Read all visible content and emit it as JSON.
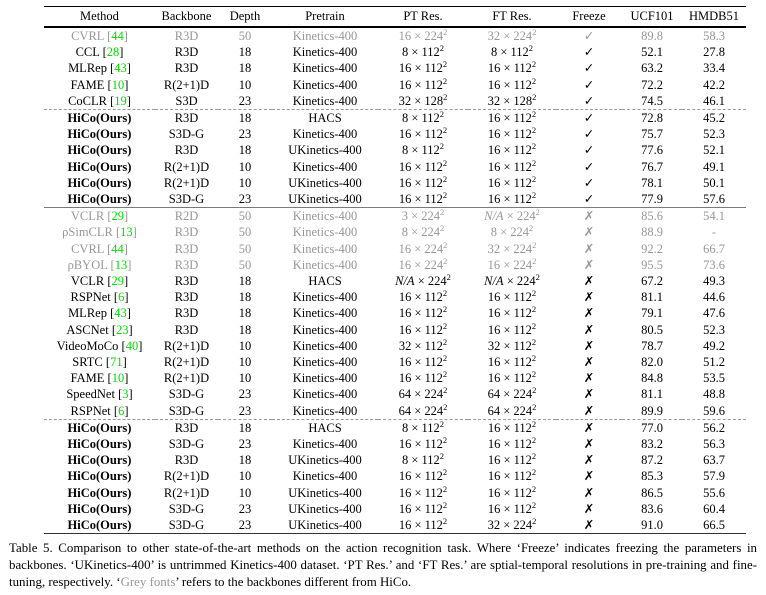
{
  "table": {
    "columns": [
      "Method",
      "Backbone",
      "Depth",
      "Pretrain",
      "PT Res.",
      "FT Res.",
      "Freeze",
      "UCF101",
      "HMDB51"
    ],
    "icons": {
      "check": "✓",
      "cross": "✗"
    },
    "colors": {
      "citation_green": "#00dc00",
      "grey_text": "#979797"
    },
    "res_exponent": "2",
    "rows": [
      {
        "method": "CVRL",
        "cite": "44",
        "backbone": "R3D",
        "depth": "50",
        "pretrain": "Kinetics-400",
        "pt": "16 × 224",
        "ft": "32 × 224",
        "freeze": "check",
        "ucf101": "89.8",
        "hmdb51": "58.3",
        "grey": true
      },
      {
        "method": "CCL",
        "cite": "28",
        "backbone": "R3D",
        "depth": "18",
        "pretrain": "Kinetics-400",
        "pt": "8 × 112",
        "ft": "8 × 112",
        "freeze": "check",
        "ucf101": "52.1",
        "hmdb51": "27.8"
      },
      {
        "method": "MLRep",
        "cite": "43",
        "backbone": "R3D",
        "depth": "18",
        "pretrain": "Kinetics-400",
        "pt": "16 × 112",
        "ft": "16 × 112",
        "freeze": "check",
        "ucf101": "63.2",
        "hmdb51": "33.4"
      },
      {
        "method": "FAME",
        "cite": "10",
        "backbone": "R(2+1)D",
        "depth": "10",
        "pretrain": "Kinetics-400",
        "pt": "16 × 112",
        "ft": "16 × 112",
        "freeze": "check",
        "ucf101": "72.2",
        "hmdb51": "42.2"
      },
      {
        "method": "CoCLR",
        "cite": "19",
        "backbone": "S3D",
        "depth": "23",
        "pretrain": "Kinetics-400",
        "pt": "32 × 128",
        "ft": "32 × 128",
        "freeze": "check",
        "ucf101": "74.5",
        "hmdb51": "46.1"
      },
      {
        "method": "HiCo(Ours)",
        "ours": true,
        "backbone": "R3D",
        "depth": "18",
        "pretrain": "HACS",
        "pt": "8 × 112",
        "ft": "16 × 112",
        "freeze": "check",
        "ucf101": "72.8",
        "hmdb51": "45.2",
        "sep": "dashed"
      },
      {
        "method": "HiCo(Ours)",
        "ours": true,
        "backbone": "S3D-G",
        "depth": "23",
        "pretrain": "Kinetics-400",
        "pt": "16 × 112",
        "ft": "16 × 112",
        "freeze": "check",
        "ucf101": "75.7",
        "hmdb51": "52.3"
      },
      {
        "method": "HiCo(Ours)",
        "ours": true,
        "backbone": "R3D",
        "depth": "18",
        "pretrain": "UKinetics-400",
        "pt": "8 × 112",
        "ft": "16 × 112",
        "freeze": "check",
        "ucf101": "77.6",
        "hmdb51": "52.1"
      },
      {
        "method": "HiCo(Ours)",
        "ours": true,
        "backbone": "R(2+1)D",
        "depth": "10",
        "pretrain": "Kinetics-400",
        "pt": "16 × 112",
        "ft": "16 × 112",
        "freeze": "check",
        "ucf101": "76.7",
        "hmdb51": "49.1"
      },
      {
        "method": "HiCo(Ours)",
        "ours": true,
        "backbone": "R(2+1)D",
        "depth": "10",
        "pretrain": "UKinetics-400",
        "pt": "16 × 112",
        "ft": "16 × 112",
        "freeze": "check",
        "ucf101": "78.1",
        "bold_ucf": true,
        "hmdb51": "50.1"
      },
      {
        "method": "HiCo(Ours)",
        "ours": true,
        "backbone": "S3D-G",
        "depth": "23",
        "pretrain": "UKinetics-400",
        "pt": "16 × 112",
        "ft": "16 × 112",
        "freeze": "check",
        "ucf101": "77.9",
        "hmdb51": "57.6",
        "bold_hmdb": true
      },
      {
        "method": "VCLR",
        "cite": "29",
        "backbone": "R2D",
        "depth": "50",
        "pretrain": "Kinetics-400",
        "pt": "3 × 224",
        "ft": "N/A × 224",
        "freeze": "cross",
        "ucf101": "85.6",
        "hmdb51": "54.1",
        "grey": true,
        "sep": "solid"
      },
      {
        "method": "ρSimCLR",
        "cite": "13",
        "backbone": "R3D",
        "depth": "50",
        "pretrain": "Kinetics-400",
        "pt": "8 × 224",
        "ft": "8 × 224",
        "freeze": "cross",
        "ucf101": "88.9",
        "hmdb51": "-",
        "grey": true
      },
      {
        "method": "CVRL",
        "cite": "44",
        "backbone": "R3D",
        "depth": "50",
        "pretrain": "Kinetics-400",
        "pt": "16 × 224",
        "ft": "32 × 224",
        "freeze": "cross",
        "ucf101": "92.2",
        "hmdb51": "66.7",
        "grey": true
      },
      {
        "method": "ρBYOL",
        "cite": "13",
        "backbone": "R3D",
        "depth": "50",
        "pretrain": "Kinetics-400",
        "pt": "16 × 224",
        "ft": "16 × 224",
        "freeze": "cross",
        "ucf101": "95.5",
        "hmdb51": "73.6",
        "grey": true
      },
      {
        "method": "VCLR",
        "cite": "29",
        "backbone": "R3D",
        "depth": "18",
        "pretrain": "HACS",
        "pt": "N/A × 224",
        "ft": "N/A × 224",
        "freeze": "cross",
        "ucf101": "67.2",
        "hmdb51": "49.3"
      },
      {
        "method": "RSPNet",
        "cite": "6",
        "backbone": "R3D",
        "depth": "18",
        "pretrain": "Kinetics-400",
        "pt": "16 × 112",
        "ft": "16 × 112",
        "freeze": "cross",
        "ucf101": "81.1",
        "hmdb51": "44.6"
      },
      {
        "method": "MLRep",
        "cite": "43",
        "backbone": "R3D",
        "depth": "18",
        "pretrain": "Kinetics-400",
        "pt": "16 × 112",
        "ft": "16 × 112",
        "freeze": "cross",
        "ucf101": "79.1",
        "hmdb51": "47.6"
      },
      {
        "method": "ASCNet",
        "cite": "23",
        "backbone": "R3D",
        "depth": "18",
        "pretrain": "Kinetics-400",
        "pt": "16 × 112",
        "ft": "16 × 112",
        "freeze": "cross",
        "ucf101": "80.5",
        "hmdb51": "52.3"
      },
      {
        "method": "VideoMoCo",
        "cite": "40",
        "backbone": "R(2+1)D",
        "depth": "10",
        "pretrain": "Kinetics-400",
        "pt": "32 × 112",
        "ft": "32 × 112",
        "freeze": "cross",
        "ucf101": "78.7",
        "hmdb51": "49.2"
      },
      {
        "method": "SRTC",
        "cite": "71",
        "backbone": "R(2+1)D",
        "depth": "10",
        "pretrain": "Kinetics-400",
        "pt": "16 × 112",
        "ft": "16 × 112",
        "freeze": "cross",
        "ucf101": "82.0",
        "hmdb51": "51.2"
      },
      {
        "method": "FAME",
        "cite": "10",
        "backbone": "R(2+1)D",
        "depth": "10",
        "pretrain": "Kinetics-400",
        "pt": "16 × 112",
        "ft": "16 × 112",
        "freeze": "cross",
        "ucf101": "84.8",
        "hmdb51": "53.5"
      },
      {
        "method": "SpeedNet",
        "cite": "3",
        "backbone": "S3D-G",
        "depth": "23",
        "pretrain": "Kinetics-400",
        "pt": "64 × 224",
        "ft": "64 × 224",
        "freeze": "cross",
        "ucf101": "81.1",
        "hmdb51": "48.8"
      },
      {
        "method": "RSPNet",
        "cite": "6",
        "backbone": "S3D-G",
        "depth": "23",
        "pretrain": "Kinetics-400",
        "pt": "64 × 224",
        "ft": "64 × 224",
        "freeze": "cross",
        "ucf101": "89.9",
        "hmdb51": "59.6"
      },
      {
        "method": "HiCo(Ours)",
        "ours": true,
        "backbone": "R3D",
        "depth": "18",
        "pretrain": "HACS",
        "pt": "8 × 112",
        "ft": "16 × 112",
        "freeze": "cross",
        "ucf101": "77.0",
        "hmdb51": "56.2",
        "sep": "dashed"
      },
      {
        "method": "HiCo(Ours)",
        "ours": true,
        "backbone": "S3D-G",
        "depth": "23",
        "pretrain": "Kinetics-400",
        "pt": "16 × 112",
        "ft": "16 × 112",
        "freeze": "cross",
        "ucf101": "83.2",
        "hmdb51": "56.3"
      },
      {
        "method": "HiCo(Ours)",
        "ours": true,
        "backbone": "R3D",
        "depth": "18",
        "pretrain": "UKinetics-400",
        "pt": "8 × 112",
        "ft": "16 × 112",
        "freeze": "cross",
        "ucf101": "87.2",
        "hmdb51": "63.7"
      },
      {
        "method": "HiCo(Ours)",
        "ours": true,
        "backbone": "R(2+1)D",
        "depth": "10",
        "pretrain": "Kinetics-400",
        "pt": "16 × 112",
        "ft": "16 × 112",
        "freeze": "cross",
        "ucf101": "85.3",
        "hmdb51": "57.9"
      },
      {
        "method": "HiCo(Ours)",
        "ours": true,
        "backbone": "R(2+1)D",
        "depth": "10",
        "pretrain": "UKinetics-400",
        "pt": "16 × 112",
        "ft": "16 × 112",
        "freeze": "cross",
        "ucf101": "86.5",
        "hmdb51": "55.6"
      },
      {
        "method": "HiCo(Ours)",
        "ours": true,
        "backbone": "S3D-G",
        "depth": "23",
        "pretrain": "UKinetics-400",
        "pt": "16 × 112",
        "ft": "16 × 112",
        "freeze": "cross",
        "ucf101": "83.6",
        "hmdb51": "60.4"
      },
      {
        "method": "HiCo(Ours)",
        "ours": true,
        "backbone": "S3D-G",
        "depth": "23",
        "pretrain": "UKinetics-400",
        "pt": "16 × 112",
        "ft": "32 × 224",
        "freeze": "cross",
        "ucf101": "91.0",
        "bold_ucf": true,
        "hmdb51": "66.5",
        "bold_hmdb": true
      }
    ]
  },
  "caption": {
    "part1": "Table 5. Comparison to other state-of-the-art methods on the action recognition task. Where ‘Freeze’ indicates freezing the parameters in backbones.  ‘UKinetics-400’ is untrimmed Kinetics-400 dataset.  ‘PT Res.’  and ‘FT Res.’  are sptial-temporal resolutions in pre-training and fine-tuning, respectively. ‘",
    "grey_text": "Grey fonts",
    "part2": "’ refers to the backbones different from HiCo."
  }
}
